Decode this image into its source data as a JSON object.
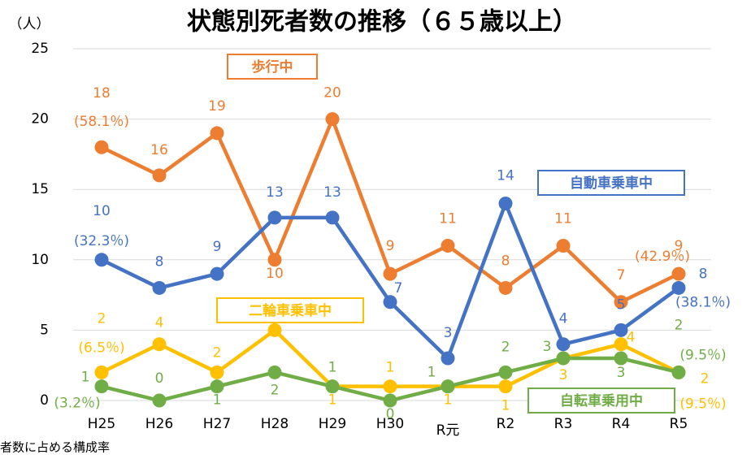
{
  "chart_data": {
    "type": "line",
    "title": "状態別死者数の推移（６５歳以上）",
    "y_label": "（人）",
    "footnote": "者数に占める構成率",
    "categories": [
      "H25",
      "H26",
      "H27",
      "H28",
      "H29",
      "H30",
      "R元",
      "R2",
      "R3",
      "R4",
      "R5"
    ],
    "ylim": [
      0,
      25
    ],
    "yticks": [
      0,
      5,
      10,
      15,
      20,
      25
    ],
    "grid": true,
    "series": [
      {
        "name": "歩行中",
        "color": "#ED7D31",
        "values": [
          18,
          16,
          19,
          10,
          20,
          9,
          11,
          8,
          11,
          7,
          9
        ],
        "share_labels": [
          "(58.1％)",
          "(42.9％)"
        ]
      },
      {
        "name": "自動車乗車中",
        "color": "#4472C4",
        "values": [
          10,
          8,
          9,
          13,
          13,
          7,
          3,
          14,
          4,
          5,
          8
        ],
        "share_labels": [
          "(32.3％)",
          "(38.1％)"
        ]
      },
      {
        "name": "二輪車乗車中",
        "color": "#FFC000",
        "values": [
          2,
          4,
          2,
          5,
          1,
          1,
          1,
          1,
          3,
          4,
          2
        ],
        "share_labels": [
          "(6.5％)",
          "(9.5％)"
        ]
      },
      {
        "name": "自転車乗用中",
        "color": "#70AD47",
        "values": [
          1,
          0,
          1,
          2,
          1,
          0,
          1,
          2,
          3,
          3,
          2
        ],
        "share_labels": [
          "(3.2％)",
          "(9.5％)"
        ]
      }
    ]
  }
}
